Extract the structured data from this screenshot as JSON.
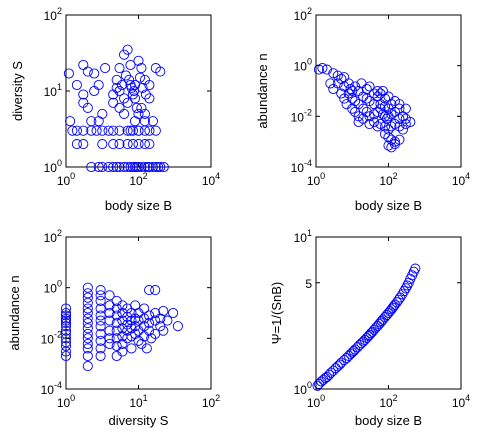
{
  "figure": {
    "marker_color": "#0000ff",
    "marker_shape": "open-circle"
  },
  "chart_data": [
    {
      "id": "a",
      "type": "scatter",
      "xlabel": "body size B",
      "ylabel": "diversity S",
      "xscale": "log",
      "yscale": "log",
      "xlim": [
        1,
        10000
      ],
      "ylim": [
        1,
        100
      ],
      "x_ticks": [
        1,
        100,
        10000
      ],
      "y_ticks": [
        1,
        10,
        100
      ],
      "grid": false,
      "points": [
        [
          1.2,
          17
        ],
        [
          3,
          22
        ],
        [
          4,
          18
        ],
        [
          6,
          17
        ],
        [
          2,
          12
        ],
        [
          3,
          9
        ],
        [
          3,
          7
        ],
        [
          4,
          6
        ],
        [
          6,
          10
        ],
        [
          8,
          12
        ],
        [
          12,
          20
        ],
        [
          20,
          9
        ],
        [
          25,
          14
        ],
        [
          30,
          20
        ],
        [
          40,
          30
        ],
        [
          50,
          35
        ],
        [
          60,
          22
        ],
        [
          80,
          12
        ],
        [
          100,
          25
        ],
        [
          120,
          20
        ],
        [
          150,
          14
        ],
        [
          200,
          12
        ],
        [
          300,
          20
        ],
        [
          400,
          18
        ],
        [
          30,
          10
        ],
        [
          40,
          8
        ],
        [
          50,
          7
        ],
        [
          60,
          12
        ],
        [
          70,
          9
        ],
        [
          80,
          8
        ],
        [
          90,
          6
        ],
        [
          100,
          5
        ],
        [
          120,
          6
        ],
        [
          150,
          5
        ],
        [
          200,
          8
        ],
        [
          250,
          4
        ],
        [
          150,
          4
        ],
        [
          100,
          3
        ],
        [
          80,
          4
        ],
        [
          60,
          3
        ],
        [
          40,
          5
        ],
        [
          30,
          6
        ],
        [
          20,
          7
        ],
        [
          10,
          5
        ],
        [
          8,
          4
        ],
        [
          5,
          4
        ],
        [
          3,
          3
        ],
        [
          2,
          3
        ],
        [
          1.5,
          3
        ],
        [
          1.3,
          4
        ],
        [
          2,
          2
        ],
        [
          3,
          2
        ],
        [
          5,
          3
        ],
        [
          7,
          3
        ],
        [
          10,
          3
        ],
        [
          15,
          3
        ],
        [
          20,
          3
        ],
        [
          30,
          3
        ],
        [
          50,
          3
        ],
        [
          70,
          3
        ],
        [
          100,
          3
        ],
        [
          150,
          3
        ],
        [
          200,
          3
        ],
        [
          300,
          3
        ],
        [
          10,
          2
        ],
        [
          20,
          2
        ],
        [
          30,
          2
        ],
        [
          50,
          2
        ],
        [
          70,
          2
        ],
        [
          100,
          2
        ],
        [
          150,
          2
        ],
        [
          200,
          2
        ],
        [
          5,
          1
        ],
        [
          8,
          1
        ],
        [
          10,
          1
        ],
        [
          15,
          1
        ],
        [
          20,
          1
        ],
        [
          25,
          1
        ],
        [
          30,
          1
        ],
        [
          40,
          1
        ],
        [
          50,
          1
        ],
        [
          60,
          1
        ],
        [
          70,
          1
        ],
        [
          80,
          1
        ],
        [
          90,
          1
        ],
        [
          100,
          1
        ],
        [
          120,
          1
        ],
        [
          150,
          1
        ],
        [
          180,
          1
        ],
        [
          200,
          1
        ],
        [
          250,
          1
        ],
        [
          300,
          1
        ],
        [
          350,
          1
        ],
        [
          400,
          1
        ],
        [
          500,
          1
        ],
        [
          45,
          16
        ],
        [
          55,
          14
        ],
        [
          65,
          11
        ],
        [
          75,
          10
        ],
        [
          110,
          15
        ],
        [
          130,
          11
        ],
        [
          160,
          9
        ],
        [
          35,
          12
        ],
        [
          25,
          11
        ]
      ]
    },
    {
      "id": "b",
      "type": "scatter",
      "xlabel": "body size B",
      "ylabel": "abundance n",
      "xscale": "log",
      "yscale": "log",
      "xlim": [
        1,
        10000
      ],
      "ylim": [
        0.0001,
        100
      ],
      "x_ticks": [
        1,
        100,
        10000
      ],
      "y_ticks": [
        0.0001,
        0.01,
        1,
        100
      ],
      "grid": false,
      "points": [
        [
          1.2,
          0.7
        ],
        [
          1.5,
          0.8
        ],
        [
          2,
          0.7
        ],
        [
          3,
          0.5
        ],
        [
          4,
          0.4
        ],
        [
          5,
          0.3
        ],
        [
          6,
          0.35
        ],
        [
          4,
          0.2
        ],
        [
          6,
          0.15
        ],
        [
          8,
          0.2
        ],
        [
          10,
          0.1
        ],
        [
          12,
          0.15
        ],
        [
          15,
          0.1
        ],
        [
          8,
          0.08
        ],
        [
          10,
          0.05
        ],
        [
          12,
          0.04
        ],
        [
          15,
          0.03
        ],
        [
          10,
          0.02
        ],
        [
          12,
          0.015
        ],
        [
          15,
          0.01
        ],
        [
          20,
          0.06
        ],
        [
          25,
          0.05
        ],
        [
          30,
          0.04
        ],
        [
          40,
          0.03
        ],
        [
          50,
          0.06
        ],
        [
          60,
          0.08
        ],
        [
          70,
          0.1
        ],
        [
          80,
          0.05
        ],
        [
          20,
          0.02
        ],
        [
          25,
          0.015
        ],
        [
          30,
          0.01
        ],
        [
          40,
          0.012
        ],
        [
          50,
          0.015
        ],
        [
          60,
          0.02
        ],
        [
          70,
          0.012
        ],
        [
          80,
          0.01
        ],
        [
          90,
          0.008
        ],
        [
          100,
          0.01
        ],
        [
          120,
          0.012
        ],
        [
          150,
          0.015
        ],
        [
          200,
          0.02
        ],
        [
          250,
          0.01
        ],
        [
          300,
          0.008
        ],
        [
          60,
          0.005
        ],
        [
          80,
          0.004
        ],
        [
          100,
          0.003
        ],
        [
          120,
          0.004
        ],
        [
          150,
          0.005
        ],
        [
          200,
          0.004
        ],
        [
          250,
          0.003
        ],
        [
          80,
          0.002
        ],
        [
          100,
          0.0015
        ],
        [
          120,
          0.0012
        ],
        [
          150,
          0.001
        ],
        [
          100,
          0.0007
        ],
        [
          120,
          0.0006
        ],
        [
          150,
          0.0008
        ],
        [
          200,
          0.0012
        ],
        [
          200,
          0.008
        ],
        [
          300,
          0.005
        ],
        [
          400,
          0.006
        ],
        [
          40,
          0.08
        ],
        [
          30,
          0.15
        ],
        [
          50,
          0.1
        ],
        [
          100,
          0.06
        ],
        [
          150,
          0.04
        ],
        [
          20,
          0.008
        ],
        [
          15,
          0.006
        ],
        [
          30,
          0.005
        ],
        [
          40,
          0.006
        ],
        [
          50,
          0.004
        ],
        [
          200,
          0.03
        ],
        [
          300,
          0.02
        ],
        [
          60,
          0.03
        ],
        [
          80,
          0.025
        ],
        [
          100,
          0.02
        ],
        [
          120,
          0.03
        ],
        [
          6,
          0.05
        ],
        [
          7,
          0.03
        ],
        [
          5,
          0.08
        ],
        [
          3,
          0.12
        ],
        [
          2.5,
          0.2
        ],
        [
          9,
          0.12
        ],
        [
          18,
          0.2
        ],
        [
          25,
          0.12
        ]
      ]
    },
    {
      "id": "c",
      "type": "scatter",
      "xlabel": "diversity S",
      "ylabel": "abundance n",
      "xscale": "log",
      "yscale": "log",
      "xlim": [
        1,
        100
      ],
      "ylim": [
        0.0001,
        100
      ],
      "x_ticks": [
        1,
        10,
        100
      ],
      "y_ticks": [
        0.0001,
        0.01,
        1,
        100
      ],
      "grid": false,
      "points": [
        [
          1,
          0.15
        ],
        [
          1,
          0.1
        ],
        [
          1,
          0.06
        ],
        [
          1,
          0.04
        ],
        [
          1,
          0.03
        ],
        [
          1,
          0.02
        ],
        [
          1,
          0.015
        ],
        [
          1,
          0.01
        ],
        [
          1,
          0.007
        ],
        [
          1,
          0.005
        ],
        [
          1,
          0.003
        ],
        [
          1,
          0.002
        ],
        [
          1,
          0.08
        ],
        [
          1,
          0.05
        ],
        [
          2,
          1
        ],
        [
          2,
          0.6
        ],
        [
          2,
          0.4
        ],
        [
          2,
          0.25
        ],
        [
          2,
          0.15
        ],
        [
          2,
          0.1
        ],
        [
          2,
          0.06
        ],
        [
          2,
          0.04
        ],
        [
          2,
          0.025
        ],
        [
          2,
          0.015
        ],
        [
          2,
          0.01
        ],
        [
          2,
          0.006
        ],
        [
          2,
          0.004
        ],
        [
          2,
          0.002
        ],
        [
          2,
          0.0008
        ],
        [
          3,
          0.8
        ],
        [
          3,
          0.5
        ],
        [
          3,
          0.3
        ],
        [
          3,
          0.15
        ],
        [
          3,
          0.08
        ],
        [
          3,
          0.05
        ],
        [
          3,
          0.03
        ],
        [
          3,
          0.015
        ],
        [
          3,
          0.008
        ],
        [
          3,
          0.004
        ],
        [
          3,
          0.002
        ],
        [
          4,
          0.5
        ],
        [
          4,
          0.2
        ],
        [
          4,
          0.1
        ],
        [
          4,
          0.05
        ],
        [
          4,
          0.02
        ],
        [
          4,
          0.01
        ],
        [
          4,
          0.006
        ],
        [
          5,
          0.3
        ],
        [
          5,
          0.15
        ],
        [
          5,
          0.08
        ],
        [
          5,
          0.04
        ],
        [
          5,
          0.02
        ],
        [
          5,
          0.01
        ],
        [
          5,
          0.005
        ],
        [
          6,
          0.2
        ],
        [
          6,
          0.1
        ],
        [
          6,
          0.05
        ],
        [
          6,
          0.025
        ],
        [
          6,
          0.012
        ],
        [
          6,
          0.006
        ],
        [
          7,
          0.15
        ],
        [
          7,
          0.07
        ],
        [
          7,
          0.035
        ],
        [
          7,
          0.02
        ],
        [
          7,
          0.01
        ],
        [
          8,
          0.1
        ],
        [
          8,
          0.05
        ],
        [
          8,
          0.025
        ],
        [
          8,
          0.012
        ],
        [
          9,
          0.2
        ],
        [
          9,
          0.06
        ],
        [
          9,
          0.03
        ],
        [
          9,
          0.015
        ],
        [
          10,
          0.1
        ],
        [
          10,
          0.05
        ],
        [
          10,
          0.02
        ],
        [
          10,
          0.008
        ],
        [
          12,
          0.15
        ],
        [
          12,
          0.06
        ],
        [
          12,
          0.03
        ],
        [
          12,
          0.012
        ],
        [
          14,
          0.8
        ],
        [
          14,
          0.08
        ],
        [
          14,
          0.04
        ],
        [
          14,
          0.02
        ],
        [
          17,
          0.8
        ],
        [
          17,
          0.1
        ],
        [
          17,
          0.05
        ],
        [
          17,
          0.015
        ],
        [
          20,
          0.06
        ],
        [
          20,
          0.03
        ],
        [
          22,
          0.12
        ],
        [
          22,
          0.02
        ],
        [
          25,
          0.05
        ],
        [
          30,
          0.1
        ],
        [
          35,
          0.03
        ],
        [
          11,
          0.006
        ],
        [
          13,
          0.004
        ],
        [
          8,
          0.004
        ],
        [
          6,
          0.003
        ],
        [
          5,
          0.002
        ],
        [
          15,
          0.01
        ]
      ]
    },
    {
      "id": "d",
      "type": "scatter",
      "xlabel": "body size B",
      "ylabel": "Ψ=1/(SnB)",
      "xscale": "log",
      "yscale": "log",
      "xlim": [
        1,
        10000
      ],
      "ylim": [
        1,
        10
      ],
      "x_ticks": [
        1,
        100,
        10000
      ],
      "y_ticks": [
        1,
        5,
        10
      ],
      "grid": false,
      "points": [
        [
          1.1,
          1.05
        ],
        [
          1.2,
          1.08
        ],
        [
          1.4,
          1.12
        ],
        [
          1.6,
          1.15
        ],
        [
          1.8,
          1.18
        ],
        [
          2,
          1.2
        ],
        [
          2.3,
          1.24
        ],
        [
          2.6,
          1.28
        ],
        [
          3,
          1.32
        ],
        [
          3.5,
          1.37
        ],
        [
          4,
          1.41
        ],
        [
          4.5,
          1.45
        ],
        [
          5,
          1.49
        ],
        [
          6,
          1.55
        ],
        [
          7,
          1.6
        ],
        [
          8,
          1.65
        ],
        [
          9,
          1.7
        ],
        [
          10,
          1.74
        ],
        [
          11,
          1.78
        ],
        [
          12,
          1.82
        ],
        [
          14,
          1.88
        ],
        [
          16,
          1.95
        ],
        [
          18,
          2
        ],
        [
          20,
          2.05
        ],
        [
          22,
          2.1
        ],
        [
          25,
          2.17
        ],
        [
          28,
          2.23
        ],
        [
          30,
          2.27
        ],
        [
          33,
          2.33
        ],
        [
          36,
          2.38
        ],
        [
          40,
          2.45
        ],
        [
          45,
          2.53
        ],
        [
          50,
          2.6
        ],
        [
          55,
          2.67
        ],
        [
          60,
          2.74
        ],
        [
          65,
          2.8
        ],
        [
          70,
          2.86
        ],
        [
          80,
          2.97
        ],
        [
          90,
          3.07
        ],
        [
          100,
          3.16
        ],
        [
          110,
          3.25
        ],
        [
          120,
          3.34
        ],
        [
          130,
          3.42
        ],
        [
          140,
          3.5
        ],
        [
          150,
          3.58
        ],
        [
          170,
          3.72
        ],
        [
          190,
          3.86
        ],
        [
          210,
          4
        ],
        [
          240,
          4.2
        ],
        [
          270,
          4.4
        ],
        [
          300,
          4.6
        ],
        [
          330,
          4.8
        ],
        [
          360,
          5
        ],
        [
          400,
          5.3
        ],
        [
          450,
          5.6
        ],
        [
          500,
          5.9
        ],
        [
          550,
          6.2
        ]
      ]
    }
  ]
}
